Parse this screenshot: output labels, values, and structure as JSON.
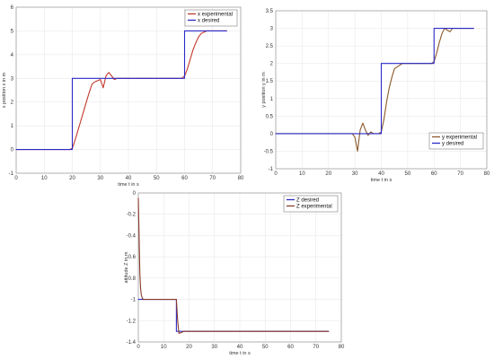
{
  "chart_data": [
    {
      "type": "line",
      "title": "",
      "xlabel": "time  t in s",
      "ylabel": "x position  x in m",
      "xlim": [
        0,
        80
      ],
      "ylim": [
        -1,
        6
      ],
      "xticks": [
        0,
        10,
        20,
        30,
        40,
        50,
        60,
        70,
        80
      ],
      "yticks": [
        -1,
        0,
        1,
        2,
        3,
        4,
        5,
        6
      ],
      "grid": true,
      "legend_position": "top-right",
      "series": [
        {
          "name": "x experimental",
          "color": "#c0392b",
          "x": [
            0,
            19,
            20,
            21,
            22,
            23,
            24,
            25,
            26,
            27,
            28,
            29,
            30,
            31,
            32,
            33,
            34,
            35,
            36,
            37,
            38,
            40,
            50,
            59,
            60,
            61,
            62,
            63,
            64,
            65,
            66,
            67,
            68,
            70,
            75
          ],
          "y": [
            0,
            0,
            0.05,
            0.4,
            0.8,
            1.2,
            1.6,
            2.0,
            2.4,
            2.75,
            2.85,
            2.9,
            2.95,
            2.6,
            3.1,
            3.25,
            3.1,
            2.95,
            3.0,
            3.0,
            3.0,
            3.0,
            3.0,
            3.0,
            3.1,
            3.4,
            3.8,
            4.2,
            4.5,
            4.75,
            4.9,
            4.95,
            5.0,
            5.0,
            5.0
          ]
        },
        {
          "name": "x desired",
          "color": "#2a2ac8",
          "x": [
            0,
            20,
            20,
            60,
            60,
            75
          ],
          "y": [
            0,
            0,
            3,
            3,
            5,
            5
          ]
        }
      ]
    },
    {
      "type": "line",
      "title": "",
      "xlabel": "time  t in s",
      "ylabel": "y position  y in m",
      "xlim": [
        0,
        80
      ],
      "ylim": [
        -1,
        3.5
      ],
      "xticks": [
        0,
        10,
        20,
        30,
        40,
        50,
        60,
        70,
        80
      ],
      "yticks": [
        -1,
        -0.5,
        0,
        0.5,
        1,
        1.5,
        2,
        2.5,
        3,
        3.5
      ],
      "grid": true,
      "legend_position": "bottom-right",
      "series": [
        {
          "name": "y experimental",
          "color": "#8b5a2b",
          "x": [
            0,
            29,
            30,
            31,
            32,
            33,
            34,
            35,
            36,
            37,
            38,
            39,
            40,
            41,
            42,
            43,
            44,
            45,
            46,
            48,
            50,
            59,
            60,
            61,
            62,
            63,
            64,
            65,
            66,
            67,
            68,
            70,
            75
          ],
          "y": [
            0,
            0,
            -0.1,
            -0.5,
            0.1,
            0.3,
            0.1,
            -0.05,
            0.05,
            0.0,
            0.0,
            0.0,
            0.05,
            0.4,
            0.9,
            1.3,
            1.6,
            1.85,
            1.9,
            2.0,
            2.0,
            2.0,
            2.05,
            2.3,
            2.6,
            2.85,
            3.0,
            2.95,
            2.9,
            3.0,
            3.0,
            3.0,
            3.0
          ]
        },
        {
          "name": "y desired",
          "color": "#2a2ac8",
          "x": [
            0,
            40,
            40,
            60,
            60,
            75
          ],
          "y": [
            0,
            0,
            2,
            2,
            3,
            3
          ]
        }
      ]
    },
    {
      "type": "line",
      "title": "",
      "xlabel": "time  t in s",
      "ylabel": "attitude  Z in m",
      "xlim": [
        0,
        80
      ],
      "ylim": [
        -1.4,
        0
      ],
      "xticks": [
        0,
        10,
        20,
        30,
        40,
        50,
        60,
        70,
        80
      ],
      "yticks": [
        -1.4,
        -1.2,
        -1,
        -0.8,
        -0.6,
        -0.4,
        -0.2,
        0
      ],
      "grid": true,
      "legend_position": "top-right",
      "series": [
        {
          "name": "Z desired",
          "color": "#2a2ac8",
          "x": [
            0,
            15,
            15,
            75
          ],
          "y": [
            -1,
            -1,
            -1.3,
            -1.3
          ]
        },
        {
          "name": "Z experimental",
          "color": "#8b3a2b",
          "x": [
            0,
            0.3,
            0.6,
            0.9,
            1.2,
            1.6,
            2,
            3,
            5,
            15,
            15.5,
            16,
            17,
            18,
            20,
            75
          ],
          "y": [
            -0.05,
            -0.4,
            -0.75,
            -0.9,
            -0.96,
            -0.99,
            -1.0,
            -1.0,
            -1.0,
            -1.0,
            -1.2,
            -1.32,
            -1.31,
            -1.3,
            -1.3,
            -1.3
          ]
        }
      ]
    }
  ]
}
